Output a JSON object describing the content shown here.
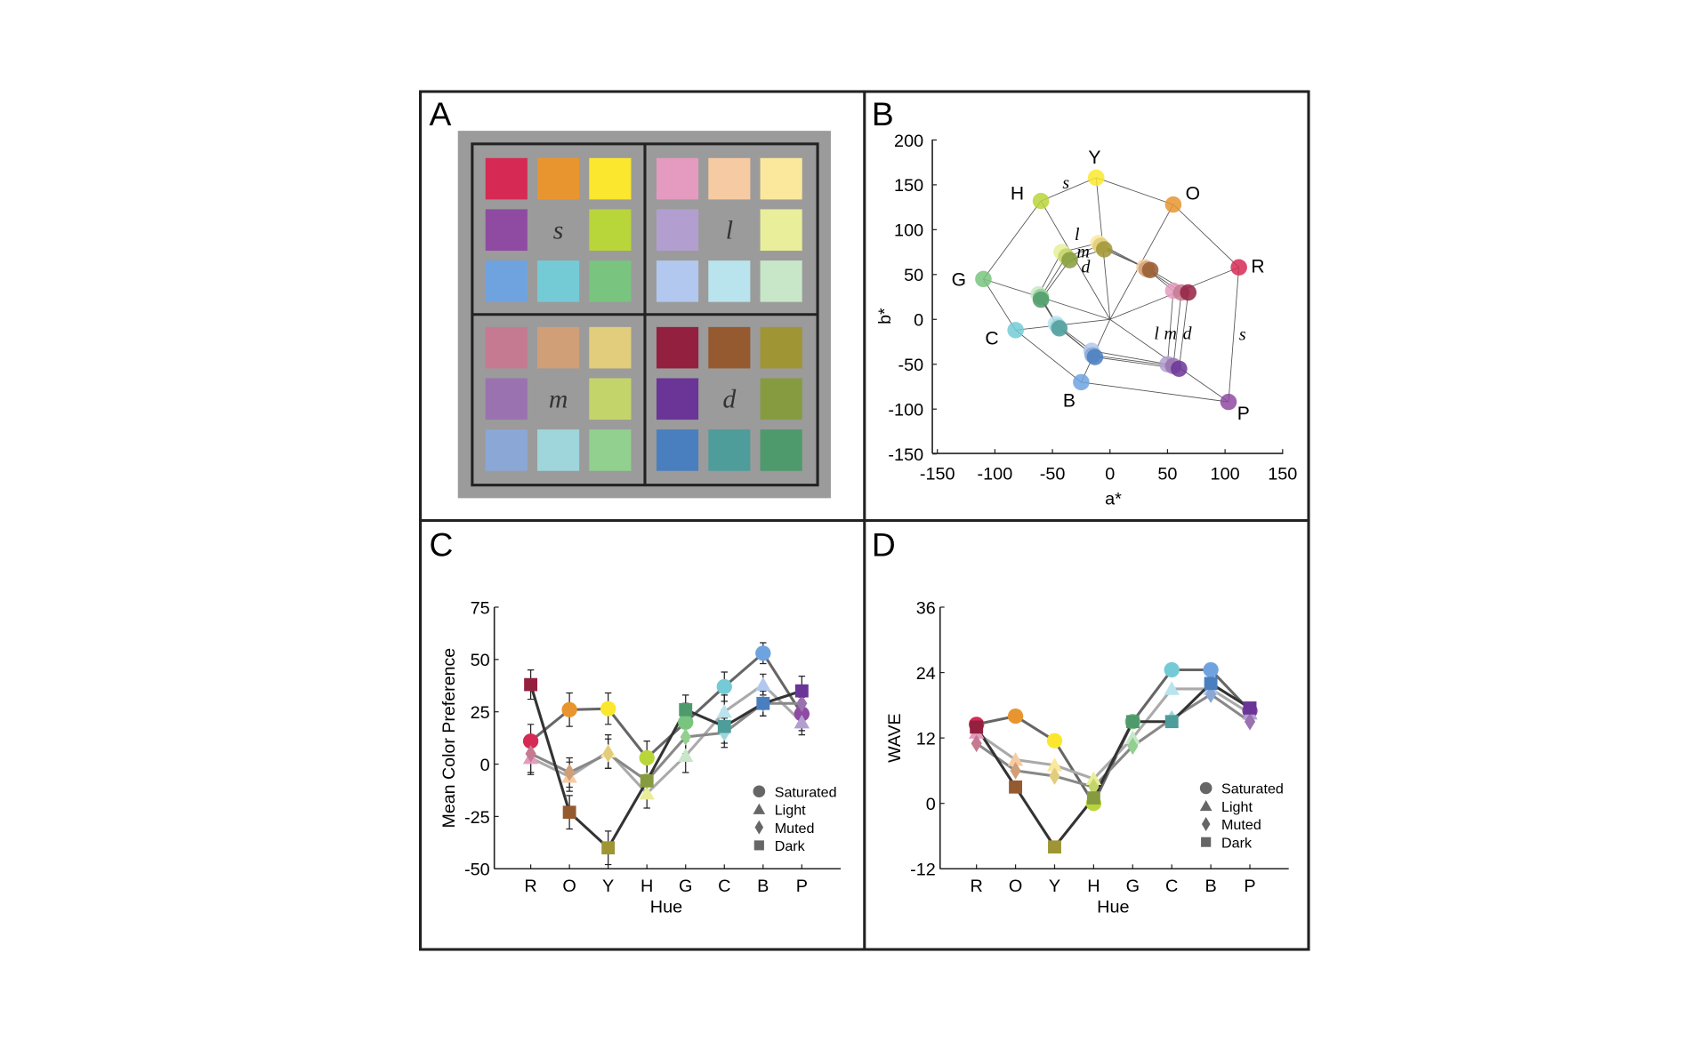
{
  "panels": {
    "a": "A",
    "b": "B",
    "c": "C",
    "d": "D"
  },
  "swatches": {
    "quadrant_labels": {
      "s": "s",
      "l": "l",
      "m": "m",
      "d": "d"
    },
    "colors": {
      "s": {
        "R": "#d62a55",
        "O": "#e8952f",
        "Y": "#fbe72e",
        "H": "#b8d53a",
        "G": "#79c47e",
        "C": "#74cbd6",
        "B": "#6fa3e0",
        "P": "#8e4ba1"
      },
      "l": {
        "R": "#e59bc0",
        "O": "#f6cba3",
        "Y": "#fbe89c",
        "H": "#e9ee9a",
        "G": "#c8e7c8",
        "C": "#b9e3ed",
        "B": "#b2c8ee",
        "P": "#b29fd0"
      },
      "m": {
        "R": "#c67a92",
        "O": "#d09f78",
        "Y": "#e1cd7c",
        "H": "#c3d56a",
        "G": "#91d08f",
        "C": "#9fd6dc",
        "B": "#8aa7d6",
        "P": "#9a72b0"
      },
      "d": {
        "R": "#942040",
        "O": "#965a30",
        "Y": "#a09535",
        "H": "#869b40",
        "G": "#4e9a6c",
        "C": "#4e9d9b",
        "B": "#4a7fbf",
        "P": "#6b3598"
      }
    }
  },
  "chart_data": [
    {
      "type": "scatter",
      "panel": "B",
      "xlabel": "a*",
      "ylabel": "b*",
      "xlim": [
        -150,
        150
      ],
      "ylim": [
        -150,
        200
      ],
      "xticks": [
        -150,
        -100,
        -50,
        0,
        50,
        100,
        150
      ],
      "yticks": [
        200,
        150,
        100,
        50,
        0,
        -50,
        -100,
        -150
      ],
      "hue_labels": [
        "R",
        "O",
        "Y",
        "H",
        "G",
        "C",
        "B",
        "P"
      ],
      "set_labels": {
        "s": "s",
        "l": "l",
        "m": "m",
        "d": "d"
      },
      "points": {
        "s": {
          "R": [
            112,
            58
          ],
          "O": [
            55,
            128
          ],
          "Y": [
            -12,
            158
          ],
          "H": [
            -60,
            132
          ],
          "G": [
            -110,
            45
          ],
          "C": [
            -82,
            -12
          ],
          "B": [
            -25,
            -70
          ],
          "P": [
            103,
            -92
          ]
        },
        "l": {
          "R": [
            55,
            32
          ],
          "O": [
            30,
            58
          ],
          "Y": [
            -10,
            85
          ],
          "H": [
            -42,
            75
          ],
          "G": [
            -62,
            28
          ],
          "C": [
            -47,
            -5
          ],
          "B": [
            -16,
            -35
          ],
          "P": [
            50,
            -50
          ]
        },
        "m": {
          "R": [
            62,
            30
          ],
          "O": [
            32,
            56
          ],
          "Y": [
            -8,
            82
          ],
          "H": [
            -38,
            70
          ],
          "G": [
            -60,
            25
          ],
          "C": [
            -45,
            -8
          ],
          "B": [
            -15,
            -40
          ],
          "P": [
            55,
            -52
          ]
        },
        "d": {
          "R": [
            68,
            30
          ],
          "O": [
            35,
            55
          ],
          "Y": [
            -5,
            78
          ],
          "H": [
            -35,
            66
          ],
          "G": [
            -60,
            22
          ],
          "C": [
            -44,
            -10
          ],
          "B": [
            -13,
            -42
          ],
          "P": [
            60,
            -55
          ]
        }
      }
    },
    {
      "type": "line",
      "panel": "C",
      "xlabel": "Hue",
      "ylabel": "Mean Color Preference",
      "categories": [
        "R",
        "O",
        "Y",
        "H",
        "G",
        "C",
        "B",
        "P"
      ],
      "ylim": [
        -50,
        75
      ],
      "yticks": [
        75,
        50,
        25,
        0,
        -25,
        -50
      ],
      "legend_position": "bottom-right",
      "series": [
        {
          "name": "Saturated",
          "key": "s",
          "marker": "circle",
          "line": "#666666",
          "values": [
            11,
            26,
            26.5,
            3,
            20,
            37,
            53,
            24
          ],
          "error": [
            8,
            8,
            7.5,
            8,
            9,
            7,
            5,
            8
          ]
        },
        {
          "name": "Light",
          "key": "l",
          "marker": "triangle",
          "line": "#aaaaaa",
          "values": [
            3,
            -6,
            6,
            -14,
            4,
            25,
            38,
            20
          ],
          "error": [
            8,
            7,
            8,
            7,
            8,
            8,
            5,
            6
          ]
        },
        {
          "name": "Muted",
          "key": "m",
          "marker": "diamond",
          "line": "#888888",
          "values": [
            5,
            -4,
            5,
            -8,
            13,
            15,
            29,
            29
          ],
          "error": [
            9,
            7,
            7,
            8,
            8,
            7,
            6,
            7
          ]
        },
        {
          "name": "Dark",
          "key": "d",
          "marker": "square",
          "line": "#333333",
          "values": [
            38,
            -23,
            -40,
            -8,
            26,
            18,
            29,
            35
          ],
          "error": [
            7,
            8,
            8,
            8,
            7,
            8,
            6,
            7
          ]
        }
      ]
    },
    {
      "type": "line",
      "panel": "D",
      "xlabel": "Hue",
      "ylabel": "WAVE",
      "categories": [
        "R",
        "O",
        "Y",
        "H",
        "G",
        "C",
        "B",
        "P"
      ],
      "ylim": [
        -12,
        36
      ],
      "yticks": [
        36,
        24,
        12,
        0,
        -12
      ],
      "legend_position": "bottom-right",
      "series": [
        {
          "name": "Saturated",
          "key": "s",
          "marker": "circle",
          "line": "#666666",
          "values": [
            14.5,
            16,
            11.5,
            0,
            15,
            24.5,
            24.5,
            17
          ]
        },
        {
          "name": "Light",
          "key": "l",
          "marker": "triangle",
          "line": "#aaaaaa",
          "values": [
            13,
            8,
            7,
            4.5,
            12,
            21,
            21,
            16.5
          ]
        },
        {
          "name": "Muted",
          "key": "m",
          "marker": "diamond",
          "line": "#888888",
          "values": [
            11,
            6,
            5,
            3,
            10.5,
            15.5,
            20,
            15
          ]
        },
        {
          "name": "Dark",
          "key": "d",
          "marker": "square",
          "line": "#333333",
          "values": [
            14,
            3,
            -8,
            1,
            15,
            15,
            22,
            17.5
          ]
        }
      ]
    }
  ]
}
